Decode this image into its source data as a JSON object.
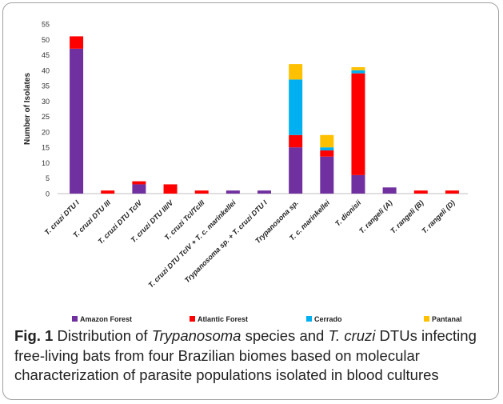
{
  "colors": {
    "Amazon Forest": "#7030a0",
    "Atlantic Forest": "#ff0000",
    "Cerrado": "#00b0f0",
    "Pantanal": "#ffc000"
  },
  "chart_data": {
    "type": "bar",
    "stacked": true,
    "ylabel": "Number of Isolates",
    "xlabel": "",
    "ylim": [
      0,
      55
    ],
    "ytick_step": 5,
    "grid": false,
    "legend": "bottom",
    "categories": [
      "T. cruzi DTU I",
      "T. cruzi DTU III",
      "T. cruzi DTU TcIV",
      "T. cruzi DTU III/V",
      "T. cruzi TcI/TcIII",
      "T. cruzi DTU TcIV + T. c. marinkellei",
      "Trypanosoma sp. + T. cruzi DTU I",
      "Trypanosona sp.",
      "T. c. marinkellei",
      "T. dionisii",
      "T. rangeli (A)",
      "T. rangeli (B)",
      "T. rangeli (D)"
    ],
    "series": [
      {
        "name": "Amazon Forest",
        "values": [
          47,
          0,
          3,
          0,
          0,
          1,
          1,
          15,
          12,
          6,
          2,
          0,
          0
        ]
      },
      {
        "name": "Atlantic Forest",
        "values": [
          4,
          1,
          1,
          3,
          1,
          0,
          0,
          4,
          2,
          33,
          0,
          1,
          1
        ]
      },
      {
        "name": "Cerrado",
        "values": [
          0,
          0,
          0,
          0,
          0,
          0,
          0,
          18,
          1,
          1,
          0,
          0,
          0
        ]
      },
      {
        "name": "Pantanal",
        "values": [
          0,
          0,
          0,
          0,
          0,
          0,
          0,
          5,
          4,
          1,
          0,
          0,
          0
        ]
      }
    ]
  },
  "caption": {
    "fig_label": "Fig. 1",
    "part1": " Distribution of ",
    "italic1": "Trypanosoma",
    "part2": " species and ",
    "italic2": "T. cruzi",
    "part3": " DTUs infecting free-living bats from four Brazilian biomes based on molecular characterization of parasite populations isolated in blood cultures"
  }
}
